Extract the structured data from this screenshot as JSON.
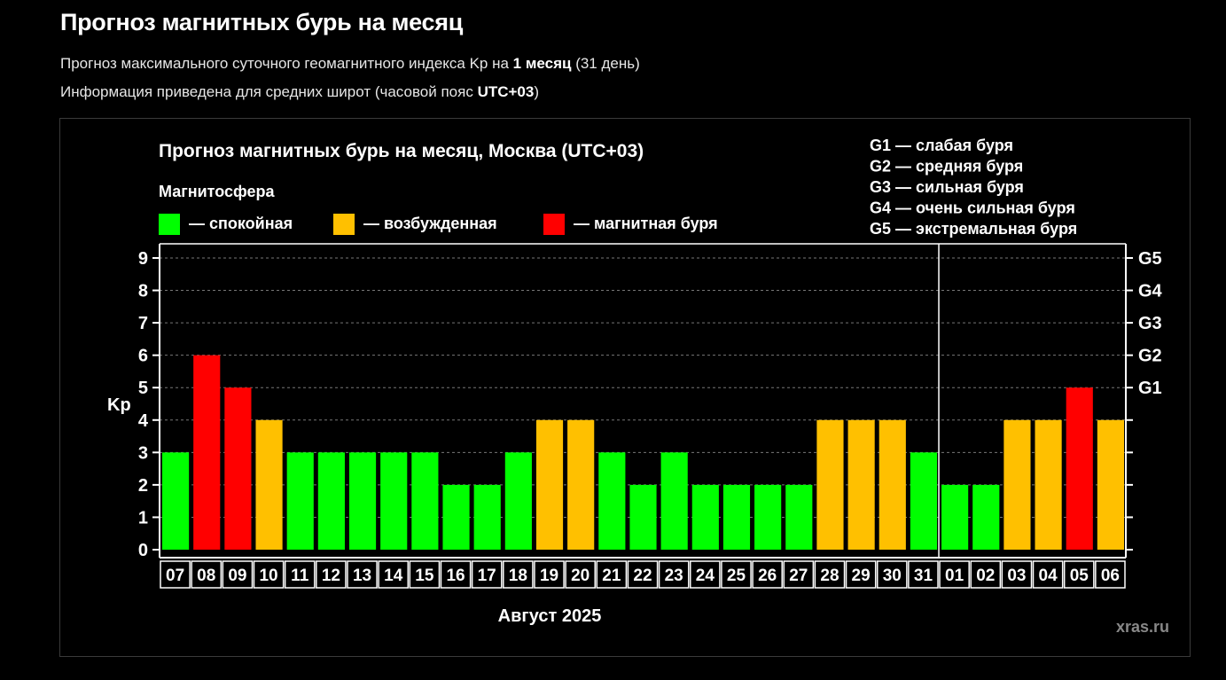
{
  "page": {
    "title": "Прогноз магнитных бурь на месяц",
    "subtitle_parts": [
      "Прогноз максимального суточного геомагнитного индекса Kp на ",
      "1 месяц",
      " (31 день)"
    ],
    "info_parts": [
      "Информация приведена для средних широт (часовой пояс ",
      "UTC+03",
      ")"
    ]
  },
  "chart_data": {
    "type": "bar",
    "title": "Прогноз магнитных бурь на месяц, Москва (UTC+03)",
    "legend_title": "Магнитосфера",
    "legend": [
      {
        "label": "— спокойная",
        "color": "#00ff00"
      },
      {
        "label": "— возбужденная",
        "color": "#ffc000"
      },
      {
        "label": "— магнитная буря",
        "color": "#ff0000"
      }
    ],
    "storm_scale": [
      "G1 — слабая буря",
      "G2 — средняя буря",
      "G3 — сильная буря",
      "G4 — очень сильная буря",
      "G5 — экстремальная буря"
    ],
    "categories": [
      "07",
      "08",
      "09",
      "10",
      "11",
      "12",
      "13",
      "14",
      "15",
      "16",
      "17",
      "18",
      "19",
      "20",
      "21",
      "22",
      "23",
      "24",
      "25",
      "26",
      "27",
      "28",
      "29",
      "30",
      "31",
      "01",
      "02",
      "03",
      "04",
      "05",
      "06"
    ],
    "values": [
      3,
      6,
      5,
      4,
      3,
      3,
      3,
      3,
      3,
      2,
      2,
      3,
      4,
      4,
      3,
      2,
      3,
      2,
      2,
      2,
      2,
      4,
      4,
      4,
      3,
      2,
      2,
      4,
      4,
      5,
      4
    ],
    "colors": [
      "#00ff00",
      "#ff0000",
      "#ff0000",
      "#ffc000",
      "#00ff00",
      "#00ff00",
      "#00ff00",
      "#00ff00",
      "#00ff00",
      "#00ff00",
      "#00ff00",
      "#00ff00",
      "#ffc000",
      "#ffc000",
      "#00ff00",
      "#00ff00",
      "#00ff00",
      "#00ff00",
      "#00ff00",
      "#00ff00",
      "#00ff00",
      "#ffc000",
      "#ffc000",
      "#ffc000",
      "#00ff00",
      "#00ff00",
      "#00ff00",
      "#ffc000",
      "#ffc000",
      "#ff0000",
      "#ffc000"
    ],
    "ylabel": "Kp",
    "ylim": [
      0,
      9
    ],
    "yticks": [
      0,
      1,
      2,
      3,
      4,
      5,
      6,
      7,
      8,
      9
    ],
    "right_ticks": [
      {
        "value": 5,
        "label": "G1"
      },
      {
        "value": 6,
        "label": "G2"
      },
      {
        "value": 7,
        "label": "G3"
      },
      {
        "value": 8,
        "label": "G4"
      },
      {
        "value": 9,
        "label": "G5"
      }
    ],
    "month_separator_index": 25,
    "xlabel": "Август 2025",
    "grid": true
  },
  "watermark": "xras.ru"
}
